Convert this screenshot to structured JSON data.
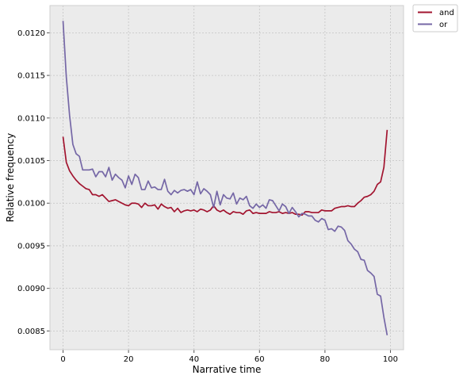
{
  "chart_data": {
    "type": "line",
    "title": "",
    "xlabel": "Narrative time",
    "ylabel": "Relative frequency",
    "xlim": [
      -4,
      104
    ],
    "ylim": [
      0.00828,
      0.01232
    ],
    "xticks": [
      0,
      20,
      40,
      60,
      80,
      100
    ],
    "xtick_labels": [
      "0",
      "20",
      "40",
      "60",
      "80",
      "100"
    ],
    "yticks": [
      0.0085,
      0.009,
      0.0095,
      0.01,
      0.0105,
      0.011,
      0.0115,
      0.012
    ],
    "ytick_labels": [
      "0.0085",
      "0.0090",
      "0.0095",
      "0.0100",
      "0.0105",
      "0.0110",
      "0.0115",
      "0.0120"
    ],
    "grid": true,
    "legend_position": "outside-top-right",
    "series": [
      {
        "name": "and",
        "color": "#a2142f",
        "x": [
          0,
          1,
          2,
          3,
          4,
          5,
          6,
          7,
          8,
          9,
          10,
          11,
          12,
          13,
          14,
          15,
          16,
          17,
          18,
          19,
          20,
          21,
          22,
          23,
          24,
          25,
          26,
          27,
          28,
          29,
          30,
          31,
          32,
          33,
          34,
          35,
          36,
          37,
          38,
          39,
          40,
          41,
          42,
          43,
          44,
          45,
          46,
          47,
          48,
          49,
          50,
          51,
          52,
          53,
          54,
          55,
          56,
          57,
          58,
          59,
          60,
          61,
          62,
          63,
          64,
          65,
          66,
          67,
          68,
          69,
          70,
          71,
          72,
          73,
          74,
          75,
          76,
          77,
          78,
          79,
          80,
          81,
          82,
          83,
          84,
          85,
          86,
          87,
          88,
          89,
          90,
          91,
          92,
          93,
          94,
          95,
          96,
          97,
          98,
          99
        ],
        "values": [
          0.01078,
          0.01048,
          0.01038,
          0.01032,
          0.01027,
          0.01023,
          0.0102,
          0.01017,
          0.01016,
          0.0101,
          0.0101,
          0.01008,
          0.0101,
          0.01006,
          0.01002,
          0.01003,
          0.01004,
          0.01002,
          0.01,
          0.00998,
          0.00997,
          0.01,
          0.01,
          0.00999,
          0.00995,
          0.01,
          0.00997,
          0.00997,
          0.00998,
          0.00993,
          0.00999,
          0.00996,
          0.00994,
          0.00995,
          0.0099,
          0.00994,
          0.00989,
          0.00991,
          0.00992,
          0.00991,
          0.00992,
          0.0099,
          0.00993,
          0.00992,
          0.0099,
          0.00992,
          0.00997,
          0.00992,
          0.0099,
          0.00992,
          0.00989,
          0.00987,
          0.0099,
          0.00989,
          0.00989,
          0.00987,
          0.00991,
          0.00992,
          0.00988,
          0.00989,
          0.00988,
          0.00988,
          0.00988,
          0.0099,
          0.00989,
          0.00989,
          0.0099,
          0.00988,
          0.00989,
          0.00988,
          0.00989,
          0.00987,
          0.00987,
          0.00986,
          0.0099,
          0.0099,
          0.00989,
          0.00989,
          0.00989,
          0.00992,
          0.00991,
          0.00991,
          0.00991,
          0.00994,
          0.00995,
          0.00996,
          0.00996,
          0.00997,
          0.00996,
          0.00996,
          0.01,
          0.01003,
          0.01007,
          0.01008,
          0.0101,
          0.01014,
          0.01022,
          0.01025,
          0.01042,
          0.01086
        ]
      },
      {
        "name": "or",
        "color": "#7567a6",
        "x": [
          0,
          1,
          2,
          3,
          4,
          5,
          6,
          7,
          8,
          9,
          10,
          11,
          12,
          13,
          14,
          15,
          16,
          17,
          18,
          19,
          20,
          21,
          22,
          23,
          24,
          25,
          26,
          27,
          28,
          29,
          30,
          31,
          32,
          33,
          34,
          35,
          36,
          37,
          38,
          39,
          40,
          41,
          42,
          43,
          44,
          45,
          46,
          47,
          48,
          49,
          50,
          51,
          52,
          53,
          54,
          55,
          56,
          57,
          58,
          59,
          60,
          61,
          62,
          63,
          64,
          65,
          66,
          67,
          68,
          69,
          70,
          71,
          72,
          73,
          74,
          75,
          76,
          77,
          78,
          79,
          80,
          81,
          82,
          83,
          84,
          85,
          86,
          87,
          88,
          89,
          90,
          91,
          92,
          93,
          94,
          95,
          96,
          97,
          98,
          99
        ],
        "values": [
          0.01214,
          0.01148,
          0.01103,
          0.01069,
          0.01058,
          0.01055,
          0.01039,
          0.01039,
          0.01039,
          0.0104,
          0.01031,
          0.01037,
          0.01037,
          0.01031,
          0.01042,
          0.01027,
          0.01034,
          0.0103,
          0.01027,
          0.01018,
          0.01032,
          0.01022,
          0.01034,
          0.0103,
          0.01016,
          0.01016,
          0.01026,
          0.01018,
          0.01019,
          0.01016,
          0.01016,
          0.01028,
          0.01014,
          0.0101,
          0.01015,
          0.01012,
          0.01015,
          0.01016,
          0.01014,
          0.01016,
          0.0101,
          0.01025,
          0.01011,
          0.01017,
          0.01014,
          0.0101,
          0.00995,
          0.01014,
          0.00998,
          0.0101,
          0.01006,
          0.01005,
          0.01012,
          0.00999,
          0.01006,
          0.01004,
          0.01008,
          0.00997,
          0.00994,
          0.00999,
          0.00995,
          0.00998,
          0.00994,
          0.01004,
          0.01003,
          0.00997,
          0.00991,
          0.00999,
          0.00996,
          0.00988,
          0.00995,
          0.0099,
          0.00984,
          0.00988,
          0.00987,
          0.00985,
          0.00985,
          0.0098,
          0.00978,
          0.00982,
          0.0098,
          0.00969,
          0.0097,
          0.00967,
          0.00973,
          0.00972,
          0.00968,
          0.00956,
          0.00952,
          0.00946,
          0.00943,
          0.00934,
          0.00933,
          0.00921,
          0.00918,
          0.00914,
          0.00893,
          0.00891,
          0.00866,
          0.00845
        ]
      }
    ]
  }
}
